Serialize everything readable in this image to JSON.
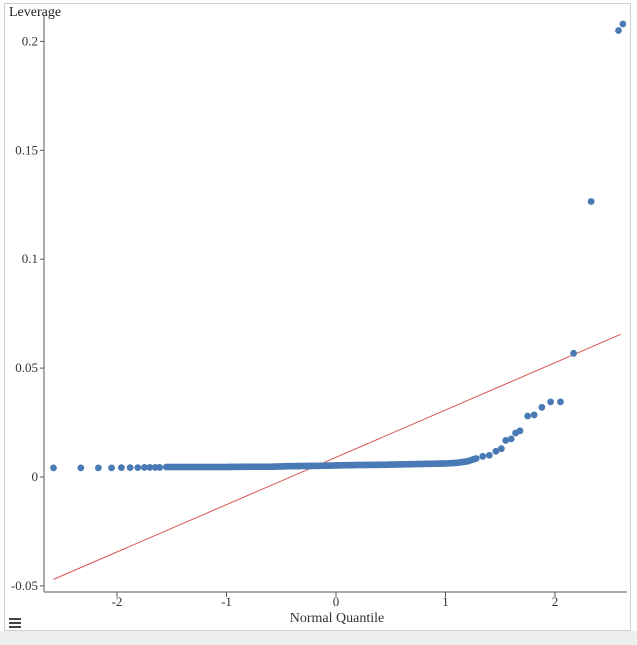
{
  "chart_data": {
    "type": "scatter",
    "title": "",
    "xlabel": "Normal Quantile",
    "ylabel": "Leverage",
    "xlim": [
      -2.65,
      2.65
    ],
    "ylim": [
      -0.05,
      0.21
    ],
    "x_ticks": [
      -2,
      -1,
      0,
      1,
      2
    ],
    "y_ticks": [
      -0.05,
      0,
      0.05,
      0.1,
      0.15,
      0.2
    ],
    "x_tick_labels": [
      "-2",
      "-1",
      "0",
      "1",
      "2"
    ],
    "y_tick_labels": [
      "-0.05",
      "0",
      "0.05",
      "0.1",
      "0.15",
      "0.2"
    ],
    "point_color": "#4a7ab5",
    "line_color": "#d9534f",
    "reference_line": {
      "x": [
        -2.58,
        2.6
      ],
      "y": [
        -0.047,
        0.0655
      ]
    },
    "points": [
      [
        -2.58,
        0.0042
      ],
      [
        -2.33,
        0.0042
      ],
      [
        -2.17,
        0.0042
      ],
      [
        -2.05,
        0.0042
      ],
      [
        -1.96,
        0.0043
      ],
      [
        -1.88,
        0.0043
      ],
      [
        -1.81,
        0.0043
      ],
      [
        -1.75,
        0.0044
      ],
      [
        -1.7,
        0.0044
      ],
      [
        -1.65,
        0.0044
      ],
      [
        -1.61,
        0.0044
      ],
      [
        -1.55,
        0.0046
      ],
      [
        -1.4,
        0.0046
      ],
      [
        -1.2,
        0.0046
      ],
      [
        -1.0,
        0.0046
      ],
      [
        -0.8,
        0.0047
      ],
      [
        -0.6,
        0.0047
      ],
      [
        -0.4,
        0.005
      ],
      [
        -0.2,
        0.0051
      ],
      [
        0.0,
        0.0053
      ],
      [
        0.2,
        0.0055
      ],
      [
        0.4,
        0.0056
      ],
      [
        0.6,
        0.0058
      ],
      [
        0.8,
        0.006
      ],
      [
        1.0,
        0.0062
      ],
      [
        1.1,
        0.0065
      ],
      [
        1.2,
        0.0072
      ],
      [
        1.28,
        0.0085
      ],
      [
        1.34,
        0.0095
      ],
      [
        1.4,
        0.01
      ],
      [
        1.46,
        0.0118
      ],
      [
        1.51,
        0.013
      ],
      [
        1.55,
        0.0168
      ],
      [
        1.6,
        0.0175
      ],
      [
        1.64,
        0.0202
      ],
      [
        1.68,
        0.0212
      ],
      [
        1.75,
        0.028
      ],
      [
        1.81,
        0.0285
      ],
      [
        1.88,
        0.032
      ],
      [
        1.96,
        0.0345
      ],
      [
        2.05,
        0.0345
      ],
      [
        2.17,
        0.0568
      ],
      [
        2.33,
        0.1265
      ],
      [
        2.58,
        0.205
      ],
      [
        2.62,
        0.208
      ]
    ]
  }
}
